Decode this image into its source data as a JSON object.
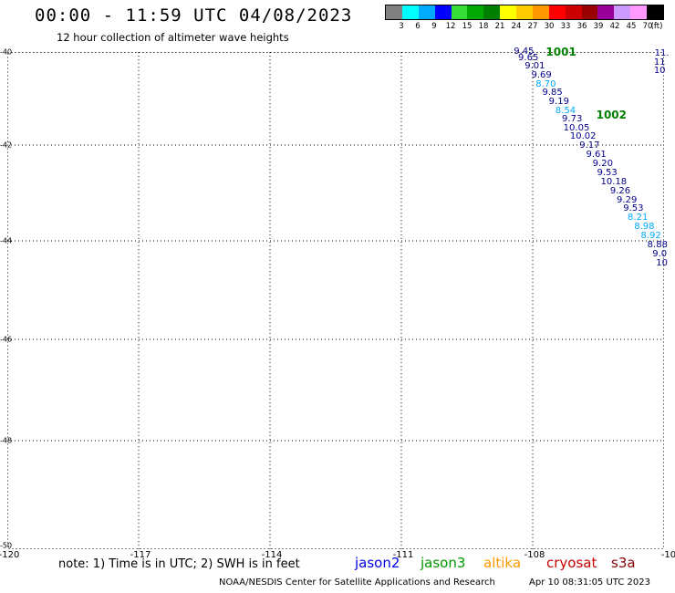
{
  "header": {
    "title": "00:00 - 11:59 UTC 04/08/2023",
    "subtitle": "12 hour collection of altimeter wave heights"
  },
  "legend": {
    "colors": [
      "#808080",
      "#00ffff",
      "#00aaff",
      "#0000ff",
      "#33dd33",
      "#00aa00",
      "#008000",
      "#ffff00",
      "#ffcc00",
      "#ff9900",
      "#ff0000",
      "#cc0000",
      "#990000",
      "#990099",
      "#cc99ff",
      "#ff99ff",
      "#000000"
    ],
    "labels": [
      "3",
      "6",
      "9",
      "12",
      "15",
      "18",
      "21",
      "24",
      "27",
      "30",
      "33",
      "36",
      "39",
      "42",
      "45",
      "70"
    ],
    "unit": "(ft)"
  },
  "map": {
    "lat_labels": [
      "-40",
      "-42",
      "-44",
      "-46",
      "-48",
      "-50"
    ],
    "lon_labels": [
      "-120",
      "-117",
      "-114",
      "-111",
      "-108",
      "-10"
    ],
    "segments": [
      {
        "label": "1001",
        "lon": -107.7,
        "lat": -39.99
      },
      {
        "label": "1002",
        "lon": -106.55,
        "lat": -41.35
      }
    ],
    "points": [
      {
        "value": "9.45",
        "lon": -108.2,
        "lat": -39.96,
        "color": "#00008b"
      },
      {
        "value": "9.65",
        "lon": -108.1,
        "lat": -40.13,
        "color": "#00008b"
      },
      {
        "value": "9.01",
        "lon": -107.95,
        "lat": -40.32,
        "color": "#00008b"
      },
      {
        "value": "9.69",
        "lon": -107.8,
        "lat": -40.51,
        "color": "#00008b"
      },
      {
        "value": "8.70",
        "lon": -107.7,
        "lat": -40.7,
        "color": "#00aaff"
      },
      {
        "value": "9.85",
        "lon": -107.55,
        "lat": -40.89,
        "color": "#00008b"
      },
      {
        "value": "9.19",
        "lon": -107.4,
        "lat": -41.08,
        "color": "#00008b"
      },
      {
        "value": "8.54",
        "lon": -107.25,
        "lat": -41.27,
        "color": "#00aaff"
      },
      {
        "value": "9.73",
        "lon": -107.1,
        "lat": -41.46,
        "color": "#00008b"
      },
      {
        "value": "10.05",
        "lon": -107.0,
        "lat": -41.64,
        "color": "#00008b"
      },
      {
        "value": "10.02",
        "lon": -106.85,
        "lat": -41.83,
        "color": "#00008b"
      },
      {
        "value": "9.17",
        "lon": -106.7,
        "lat": -42.02,
        "color": "#00008b"
      },
      {
        "value": "9.61",
        "lon": -106.55,
        "lat": -42.21,
        "color": "#00008b"
      },
      {
        "value": "9.20",
        "lon": -106.4,
        "lat": -42.4,
        "color": "#00008b"
      },
      {
        "value": "9.53",
        "lon": -106.3,
        "lat": -42.59,
        "color": "#00008b"
      },
      {
        "value": "10.18",
        "lon": -106.15,
        "lat": -42.78,
        "color": "#00008b"
      },
      {
        "value": "9.26",
        "lon": -106.0,
        "lat": -42.97,
        "color": "#00008b"
      },
      {
        "value": "9.29",
        "lon": -105.85,
        "lat": -43.16,
        "color": "#00008b"
      },
      {
        "value": "9.53",
        "lon": -105.7,
        "lat": -43.34,
        "color": "#00008b"
      },
      {
        "value": "8.21",
        "lon": -105.6,
        "lat": -43.52,
        "color": "#00aaff"
      },
      {
        "value": "8.98",
        "lon": -105.45,
        "lat": -43.71,
        "color": "#00aaff"
      },
      {
        "value": "8.92",
        "lon": -105.3,
        "lat": -43.9,
        "color": "#00aaff"
      },
      {
        "value": "8.88",
        "lon": -105.15,
        "lat": -44.09,
        "color": "#00008b"
      },
      {
        "value": "9.0",
        "lon": -105.1,
        "lat": -44.27,
        "color": "#00008b"
      },
      {
        "value": "10",
        "lon": -105.05,
        "lat": -44.46,
        "color": "#00008b"
      },
      {
        "value": "11.",
        "lon": -105.05,
        "lat": -40.04,
        "color": "#00008b"
      },
      {
        "value": "11",
        "lon": -105.1,
        "lat": -40.23,
        "color": "#00008b"
      },
      {
        "value": "10",
        "lon": -105.1,
        "lat": -40.42,
        "color": "#00008b"
      }
    ]
  },
  "footer": {
    "note": "note: 1) Time is in UTC; 2) SWH is in feet",
    "satellites": [
      {
        "name": "jason2",
        "color": "#0000ee"
      },
      {
        "name": "jason3",
        "color": "#009900"
      },
      {
        "name": "altika",
        "color": "#ff9900"
      },
      {
        "name": "cryosat",
        "color": "#cc0000"
      },
      {
        "name": "s3a",
        "color": "#880000"
      }
    ],
    "credit": "NOAA/NESDIS Center for Satellite Applications and Research",
    "timestamp": "Apr 10 08:31:05 UTC 2023"
  }
}
